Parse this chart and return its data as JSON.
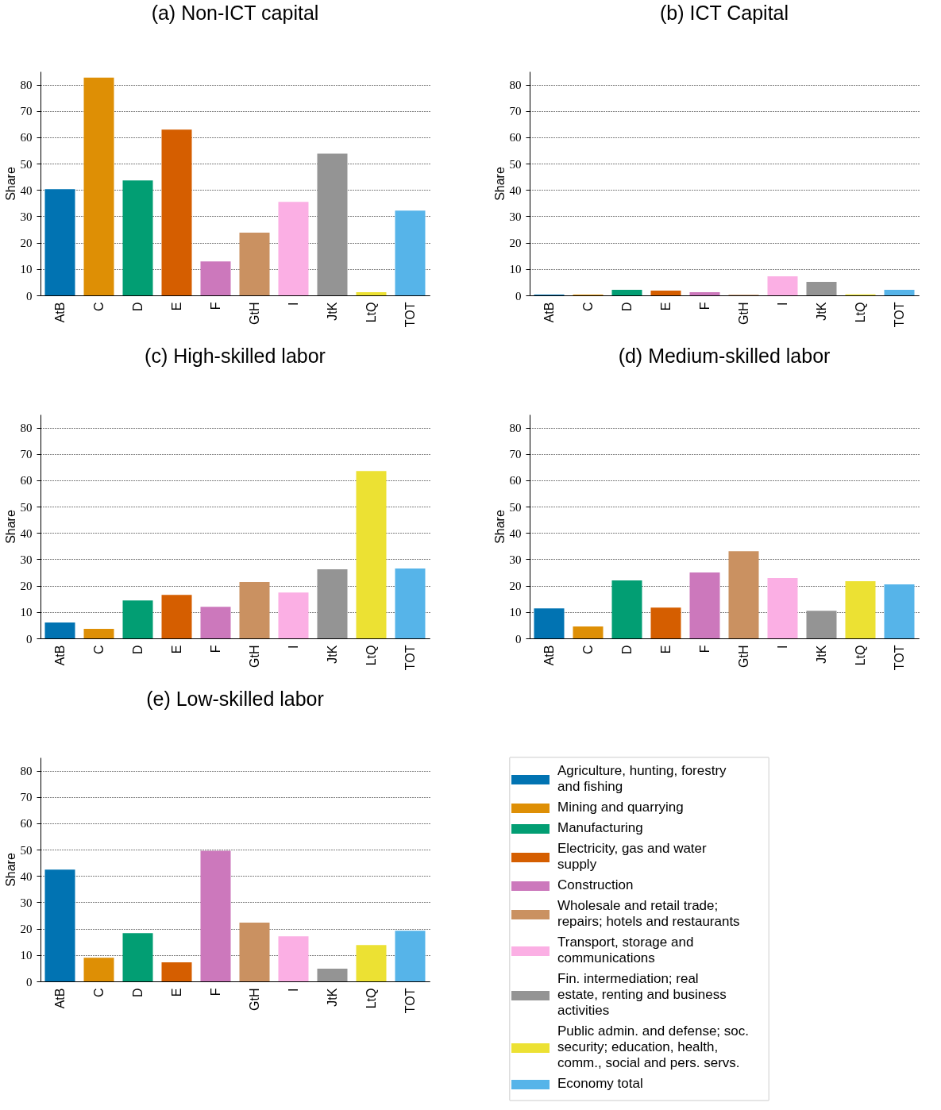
{
  "chart_data": [
    {
      "type": "bar",
      "title": "(a) Non-ICT capital",
      "ylabel": "Share",
      "categories": [
        "AtB",
        "C",
        "D",
        "E",
        "F",
        "GtH",
        "I",
        "JtK",
        "LtQ",
        "TOT"
      ],
      "values": [
        40.3,
        82.7,
        43.6,
        62.9,
        12.9,
        23.8,
        35.5,
        53.8,
        1.2,
        32.2
      ],
      "colors": [
        "#0173b2",
        "#de8f05",
        "#029e73",
        "#d55e00",
        "#cc78bc",
        "#ca9161",
        "#fbafe4",
        "#949494",
        "#ece133",
        "#56b4e9"
      ],
      "ylim": [
        0,
        85
      ],
      "yticks": [
        0,
        10,
        20,
        30,
        40,
        50,
        60,
        70,
        80
      ],
      "grid": "y"
    },
    {
      "type": "bar",
      "title": "(b) ICT Capital",
      "ylabel": "Share",
      "categories": [
        "AtB",
        "C",
        "D",
        "E",
        "F",
        "GtH",
        "I",
        "JtK",
        "LtQ",
        "TOT"
      ],
      "values": [
        0.3,
        0.3,
        2.1,
        1.8,
        1.2,
        0.2,
        7.2,
        5.1,
        0.4,
        2.1
      ],
      "colors": [
        "#0173b2",
        "#de8f05",
        "#029e73",
        "#d55e00",
        "#cc78bc",
        "#ca9161",
        "#fbafe4",
        "#949494",
        "#ece133",
        "#56b4e9"
      ],
      "ylim": [
        0,
        85
      ],
      "yticks": [
        0,
        10,
        20,
        30,
        40,
        50,
        60,
        70,
        80
      ],
      "grid": "y"
    },
    {
      "type": "bar",
      "title": "(c) High-skilled labor",
      "ylabel": "Share",
      "categories": [
        "AtB",
        "C",
        "D",
        "E",
        "F",
        "GtH",
        "I",
        "JtK",
        "LtQ",
        "TOT"
      ],
      "values": [
        6.0,
        3.6,
        14.4,
        16.5,
        12.0,
        21.4,
        17.4,
        26.2,
        63.5,
        26.5
      ],
      "colors": [
        "#0173b2",
        "#de8f05",
        "#029e73",
        "#d55e00",
        "#cc78bc",
        "#ca9161",
        "#fbafe4",
        "#949494",
        "#ece133",
        "#56b4e9"
      ],
      "ylim": [
        0,
        85
      ],
      "yticks": [
        0,
        10,
        20,
        30,
        40,
        50,
        60,
        70,
        80
      ],
      "grid": "y"
    },
    {
      "type": "bar",
      "title": "(d) Medium-skilled labor",
      "ylabel": "Share",
      "categories": [
        "AtB",
        "C",
        "D",
        "E",
        "F",
        "GtH",
        "I",
        "JtK",
        "LtQ",
        "TOT"
      ],
      "values": [
        11.4,
        4.5,
        22.0,
        11.7,
        25.0,
        33.1,
        22.9,
        10.5,
        21.7,
        20.5
      ],
      "colors": [
        "#0173b2",
        "#de8f05",
        "#029e73",
        "#d55e00",
        "#cc78bc",
        "#ca9161",
        "#fbafe4",
        "#949494",
        "#ece133",
        "#56b4e9"
      ],
      "ylim": [
        0,
        85
      ],
      "yticks": [
        0,
        10,
        20,
        30,
        40,
        50,
        60,
        70,
        80
      ],
      "grid": "y"
    },
    {
      "type": "bar",
      "title": "(e) Low-skilled labor",
      "ylabel": "Share",
      "categories": [
        "AtB",
        "C",
        "D",
        "E",
        "F",
        "GtH",
        "I",
        "JtK",
        "LtQ",
        "TOT"
      ],
      "ylim": [
        0,
        85
      ],
      "yticks": [
        0,
        10,
        20,
        30,
        40,
        50,
        60,
        70,
        80
      ],
      "grid": "y",
      "legend": "right",
      "series": [
        {
          "name": "Agriculture, hunting, forestry and fishing",
          "color": "#0173b2",
          "values": [
            42.4,
            null,
            null,
            null,
            null,
            null,
            null,
            null,
            null,
            null
          ]
        },
        {
          "name": "Mining and quarrying",
          "color": "#de8f05",
          "values": [
            null,
            9.0,
            null,
            null,
            null,
            null,
            null,
            null,
            null,
            null
          ]
        },
        {
          "name": "Manufacturing",
          "color": "#029e73",
          "values": [
            null,
            null,
            18.3,
            null,
            null,
            null,
            null,
            null,
            null,
            null
          ]
        },
        {
          "name": "Electricity, gas and water supply",
          "color": "#d55e00",
          "values": [
            null,
            null,
            null,
            7.2,
            null,
            null,
            null,
            null,
            null,
            null
          ]
        },
        {
          "name": "Construction",
          "color": "#cc78bc",
          "values": [
            null,
            null,
            null,
            null,
            49.6,
            null,
            null,
            null,
            null,
            null
          ]
        },
        {
          "name": "Wholesale and retail trade; repairs; hotels and restaurants",
          "color": "#ca9161",
          "values": [
            null,
            null,
            null,
            null,
            null,
            22.3,
            null,
            null,
            null,
            null
          ]
        },
        {
          "name": "Transport, storage and communications",
          "color": "#fbafe4",
          "values": [
            null,
            null,
            null,
            null,
            null,
            null,
            17.1,
            null,
            null,
            null
          ]
        },
        {
          "name": "Fin. intermediation; real estate, renting and business activities",
          "color": "#949494",
          "values": [
            null,
            null,
            null,
            null,
            null,
            null,
            null,
            4.8,
            null,
            null
          ]
        },
        {
          "name": "Public admin. and defense; soc. security; education, health, comm., social and pers. servs.",
          "color": "#ece133",
          "values": [
            null,
            null,
            null,
            null,
            null,
            null,
            null,
            null,
            13.8,
            null
          ]
        },
        {
          "name": "Economy total",
          "color": "#56b4e9",
          "values": [
            null,
            null,
            null,
            null,
            null,
            null,
            null,
            null,
            null,
            19.2
          ]
        }
      ]
    }
  ]
}
